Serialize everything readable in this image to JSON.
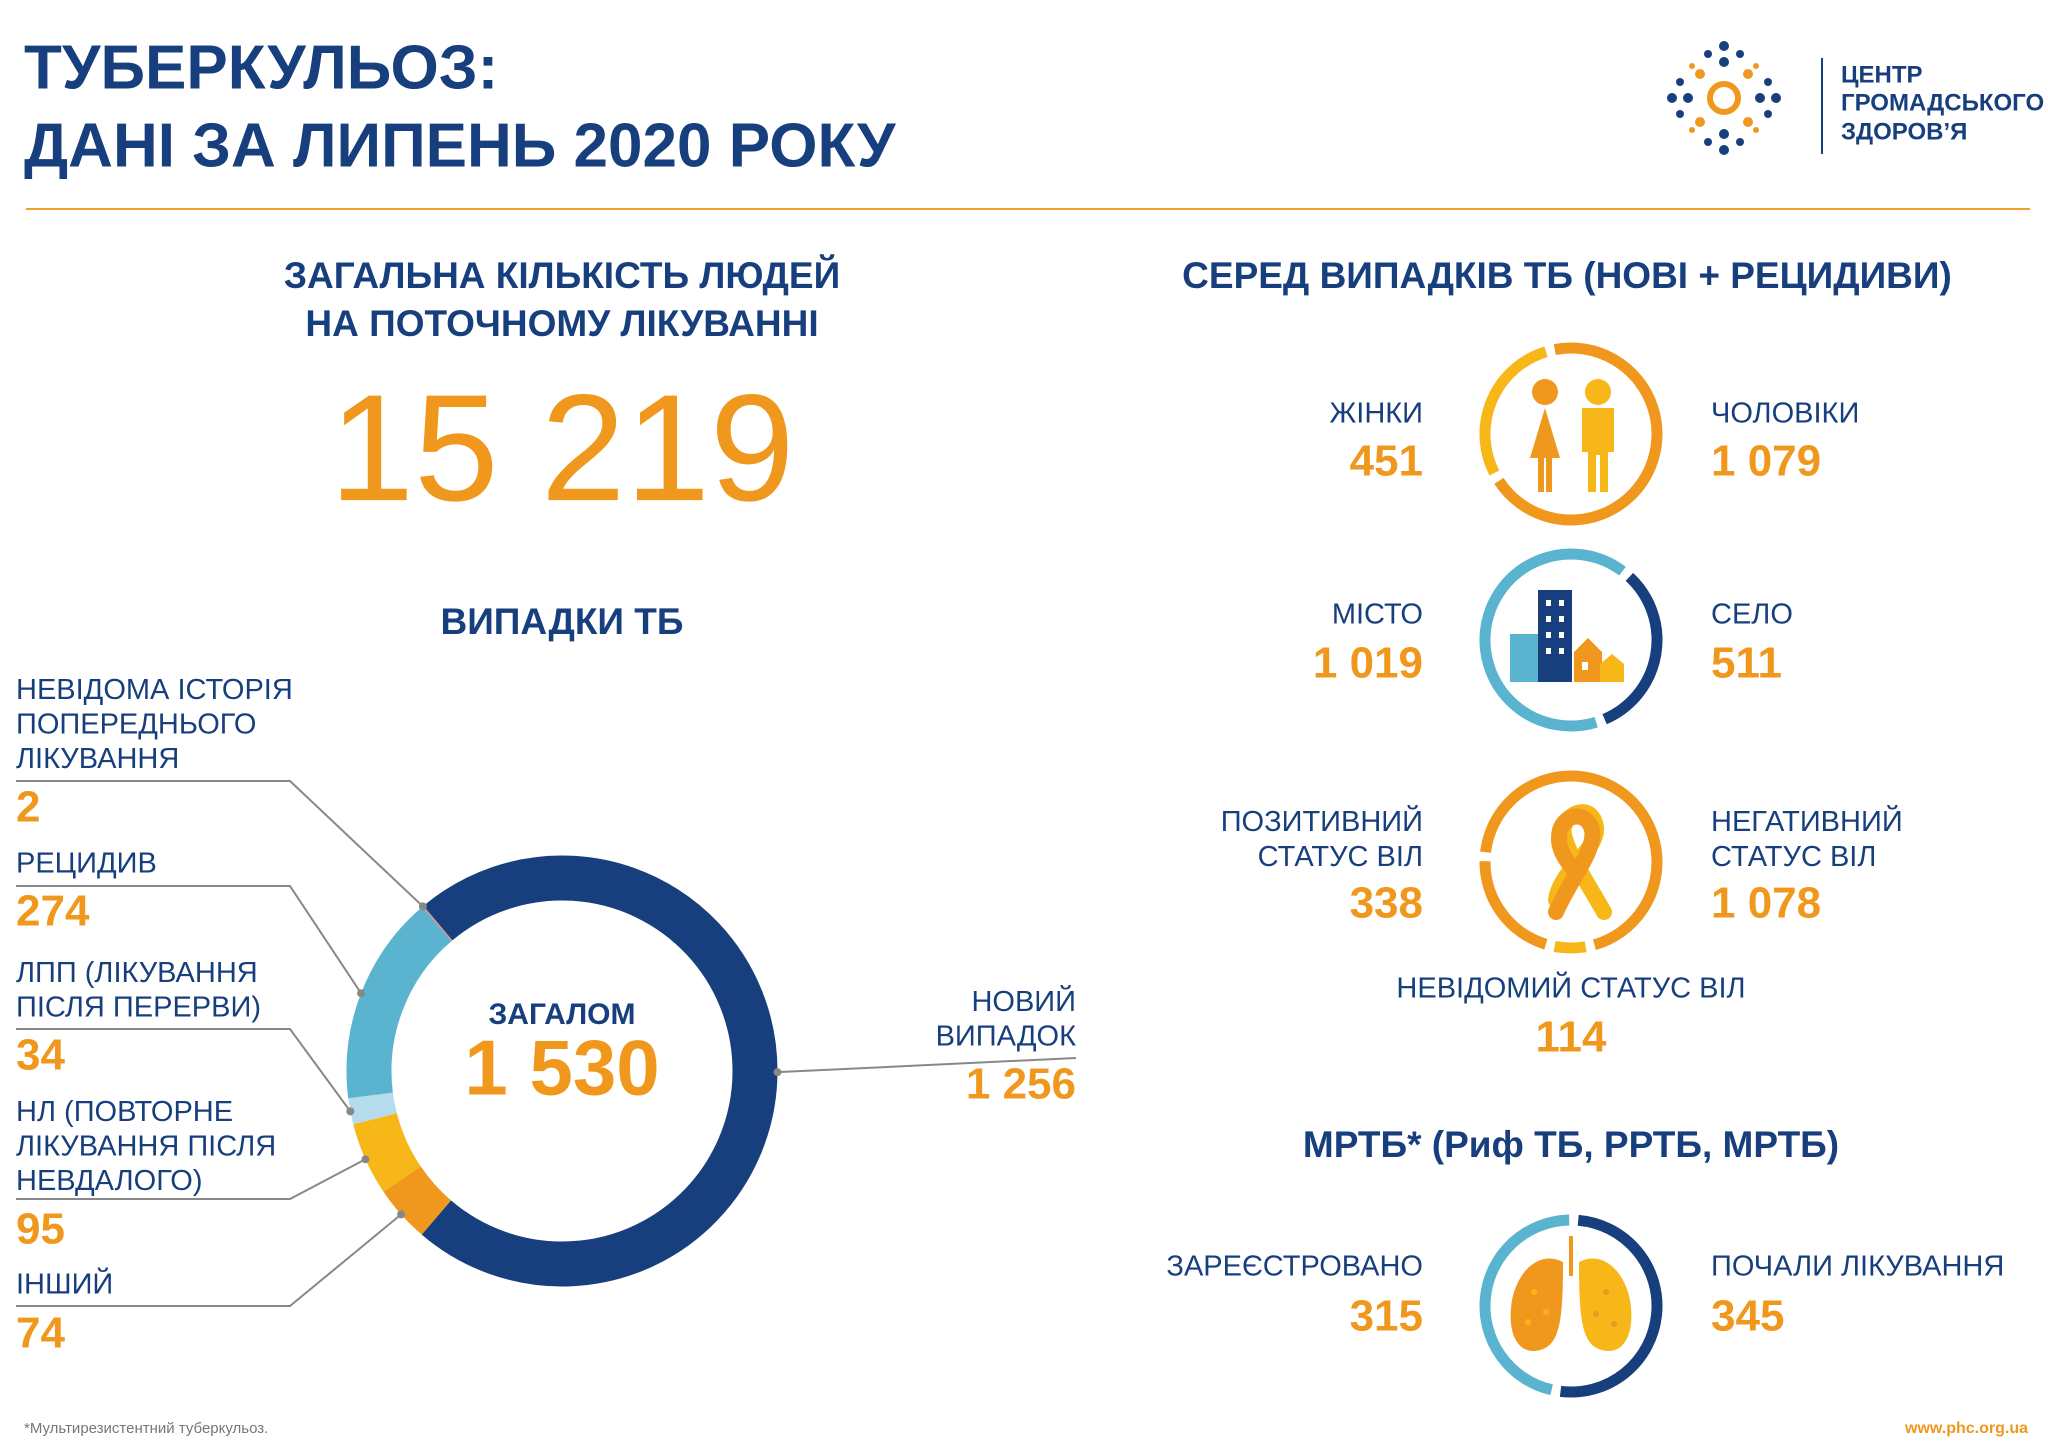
{
  "header": {
    "title": [
      "ТУБЕРКУЛЬОЗ:",
      "ДАНІ ЗА ЛИПЕНЬ 2020 РОКУ"
    ],
    "logo": [
      "ЦЕНТР",
      "ГРОМАДСЬКОГО",
      "ЗДОРОВ’Я"
    ]
  },
  "treatment": {
    "title": [
      "ЗАГАЛЬНА КІЛЬКІСТЬ ЛЮДЕЙ",
      "НА ПОТОЧНОМУ ЛІКУВАННІ"
    ],
    "value": "15 219"
  },
  "breakdown_title": "СЕРЕД ВИПАДКІВ ТБ (НОВІ + РЕЦИДИВИ)",
  "chart_data": [
    {
      "type": "donut",
      "title": "ВИПАДКИ ТБ",
      "center_label": "ЗАГАЛОМ",
      "center_value": "1 530",
      "categories": [
        "НОВИЙ\nВИПАДОК",
        "ІНШИЙ",
        "НЛ (ПОВТОРНЕ\nЛІКУВАННЯ ПІСЛЯ\nНЕВДАЛОГО)",
        "ЛПП (ЛІКУВАННЯ\nПІСЛЯ ПЕРЕРВИ)",
        "РЕЦИДИВ",
        "НЕВІДОМА ІСТОРІЯ\nПОПЕРЕДНЬОГО\nЛІКУВАННЯ"
      ],
      "values": [
        1256,
        74,
        95,
        34,
        274,
        2
      ],
      "value_labels": [
        "1 256",
        "74",
        "95",
        "34",
        "274",
        "2"
      ],
      "colors": [
        "#173e7d",
        "#f0981e",
        "#f7b718",
        "#b5dcec",
        "#5ab4d0",
        "#e08a8a"
      ]
    },
    {
      "type": "ring",
      "categories": [
        "ЖІНКИ",
        "ЧОЛОВІКИ"
      ],
      "values": [
        451,
        1079
      ],
      "value_labels": [
        "451",
        "1 079"
      ],
      "colors": [
        "#f7b718",
        "#f0981e"
      ]
    },
    {
      "type": "ring",
      "categories": [
        "МІСТО",
        "СЕЛО"
      ],
      "values": [
        1019,
        511
      ],
      "value_labels": [
        "1 019",
        "511"
      ],
      "colors": [
        "#5ab4d0",
        "#173e7d"
      ]
    },
    {
      "type": "ring",
      "categories": [
        "ПОЗИТИВНИЙ\nСТАТУС ВІЛ",
        "НЕГАТИВНИЙ\nСТАТУС  ВІЛ",
        "НЕВІДОМИЙ СТАТУС ВІЛ"
      ],
      "values": [
        338,
        1078,
        114
      ],
      "value_labels": [
        "338",
        "1 078",
        "114"
      ],
      "colors": [
        "#f0981e",
        "#f0981e",
        "#f7b718"
      ]
    },
    {
      "type": "ring",
      "title": "МРТБ* (Риф ТБ, РРТБ, МРТБ)",
      "categories": [
        "ЗАРЕЄСТРОВАНО",
        "ПОЧАЛИ ЛІКУВАННЯ"
      ],
      "values": [
        315,
        345
      ],
      "value_labels": [
        "315",
        "345"
      ],
      "colors": [
        "#5ab4d0",
        "#173e7d"
      ]
    }
  ],
  "footer": {
    "note": "*Мультирезистентний туберкульоз.",
    "url": "www.phc.org.ua"
  }
}
